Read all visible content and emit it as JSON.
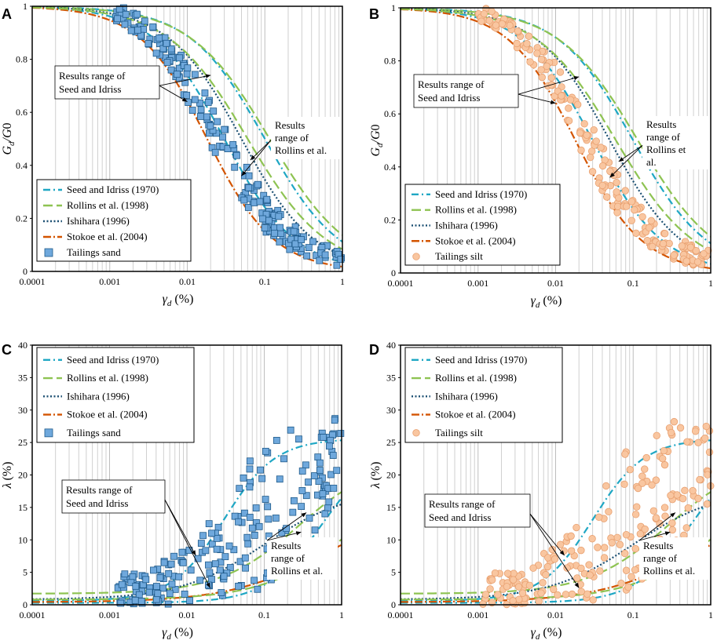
{
  "chart_data": [
    {
      "letter": "A",
      "type": "scatter",
      "ylabel": "Gd/G0",
      "xlabel": "γd (%)",
      "xscale": "log",
      "xlim": [
        0.0001,
        1
      ],
      "ylim": [
        0,
        1
      ],
      "yticks": [
        "0",
        "0.2",
        "0.4",
        "0.6",
        "0.8",
        "1"
      ],
      "xticks": [
        "0.0001",
        "0.001",
        "0.01",
        "0.1",
        "1"
      ],
      "series_names": [
        "Seed and Idriss (1970)",
        "Rollins et al. (1998)",
        "Ishihara (1996)",
        "Stokoe et al. (2004)"
      ],
      "scatter_name": "Tailings sand",
      "annotations": [
        "Results range of",
        "Seed and Idriss",
        "Results",
        "range of",
        "Rollins et al."
      ]
    },
    {
      "letter": "B",
      "type": "scatter",
      "ylabel": "Gd/G0",
      "xlabel": "γd (%)",
      "xscale": "log",
      "xlim": [
        0.0001,
        1
      ],
      "ylim": [
        0,
        1
      ],
      "yticks": [
        "0",
        "0.2",
        "0.4",
        "0.6",
        "0.8",
        "1"
      ],
      "xticks": [
        "0.0001",
        "0.001",
        "0.01",
        "0.1",
        "1"
      ],
      "series_names": [
        "Seed and Idriss (1970)",
        "Rollins et al. (1998)",
        "Ishihara (1996)",
        "Stokoe et al. (2004)"
      ],
      "scatter_name": "Tailings silt",
      "annotations": [
        "Results range of",
        "Seed and Idriss",
        "Results",
        "range of",
        "Rollins et",
        "al."
      ]
    },
    {
      "letter": "C",
      "type": "scatter",
      "ylabel": "λ (%)",
      "xlabel": "γd (%)",
      "xscale": "log",
      "xlim": [
        0.0001,
        1
      ],
      "ylim": [
        0,
        40
      ],
      "yticks": [
        "0",
        "5",
        "10",
        "15",
        "20",
        "25",
        "30",
        "35",
        "40"
      ],
      "xticks": [
        "0.0001",
        "0.001",
        "0.01",
        "0.1",
        "1"
      ],
      "series_names": [
        "Seed and Idriss (1970)",
        "Rollins et al. (1998)",
        "Ishihara (1996)",
        "Stokoe et al. (2004)"
      ],
      "scatter_name": "Tailings sand",
      "annotations": [
        "Results range of",
        "Seed and Idriss",
        "Results",
        "range of",
        "Rollins et al."
      ]
    },
    {
      "letter": "D",
      "type": "scatter",
      "ylabel": "λ (%)",
      "xlabel": "γd (%)",
      "xscale": "log",
      "xlim": [
        0.0001,
        1
      ],
      "ylim": [
        0,
        40
      ],
      "yticks": [
        "0",
        "5",
        "10",
        "15",
        "20",
        "25",
        "30",
        "35",
        "40"
      ],
      "xticks": [
        "0.0001",
        "0.001",
        "0.01",
        "0.1",
        "1"
      ],
      "series_names": [
        "Seed and Idriss (1970)",
        "Rollins et al. (1998)",
        "Ishihara (1996)",
        "Stokoe et al. (2004)"
      ],
      "scatter_name": "Tailings silt",
      "annotations": [
        "Results range of",
        "Seed and Idriss",
        "Results",
        "range of",
        "Rollins et al."
      ]
    }
  ],
  "colors": {
    "seed": "#1fa7c4",
    "rollins": "#8ec352",
    "ishihara": "#1b4f72",
    "stokoe": "#d35400",
    "sand_fill": "#6fa8dc",
    "sand_stroke": "#1f5a8a",
    "silt_fill": "#f9c6a0",
    "silt_stroke": "#e8a070"
  }
}
